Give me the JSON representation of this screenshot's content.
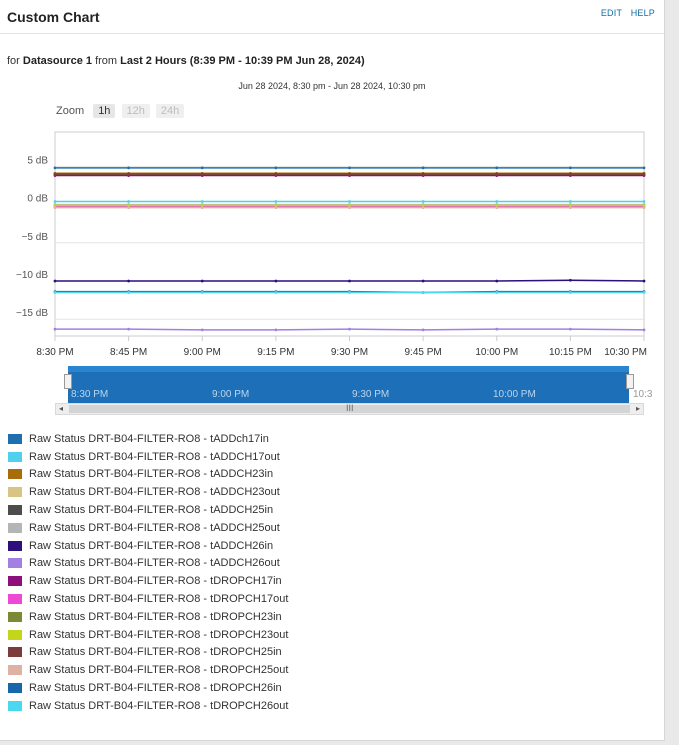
{
  "header": {
    "title": "Custom Chart",
    "edit": "EDIT",
    "help": "HELP"
  },
  "subtitle": {
    "prefix": "for",
    "datasource": "Datasource 1",
    "from_word": "from",
    "period": "Last 2 Hours (8:39 PM - 10:39 PM Jun 28, 2024)"
  },
  "range_label": "Jun 28 2024, 8:30 pm - Jun 28 2024, 10:30 pm",
  "zoom": {
    "label": "Zoom",
    "buttons": [
      "1h",
      "12h",
      "24h"
    ],
    "active": "1h"
  },
  "navigator": {
    "labels": [
      "8:30 PM",
      "9:00 PM",
      "9:30 PM",
      "10:00 PM"
    ],
    "overflow_label": "10:3",
    "scroll_grip": "III"
  },
  "chart_data": {
    "type": "line",
    "x": [
      "8:30 PM",
      "8:45 PM",
      "9:00 PM",
      "9:15 PM",
      "9:30 PM",
      "9:45 PM",
      "10:00 PM",
      "10:15 PM",
      "10:30 PM"
    ],
    "y_ticks": [
      {
        "value": 5,
        "label": "5 dB"
      },
      {
        "value": 0,
        "label": "0 dB"
      },
      {
        "value": -5,
        "label": "−5 dB"
      },
      {
        "value": -10,
        "label": "−10 dB"
      },
      {
        "value": -15,
        "label": "−15 dB"
      }
    ],
    "ylim": [
      -17.2,
      9.5
    ],
    "grid": true,
    "series": [
      {
        "name": "Raw Status DRT-B04-FILTER-RO8 - tADDch17in",
        "color": "#1f6fb0",
        "values": [
          4.8,
          4.8,
          4.8,
          4.8,
          4.8,
          4.8,
          4.8,
          4.8,
          4.8
        ]
      },
      {
        "name": "Raw Status DRT-B04-FILTER-RO8 - tADDCH17out",
        "color": "#4fd0ef",
        "values": [
          0.4,
          0.4,
          0.4,
          0.4,
          0.4,
          0.4,
          0.4,
          0.4,
          0.4
        ]
      },
      {
        "name": "Raw Status DRT-B04-FILTER-RO8 - tADDCH23in",
        "color": "#a86c0b",
        "values": [
          4.1,
          4.1,
          4.1,
          4.1,
          4.1,
          4.1,
          4.1,
          4.1,
          4.1
        ]
      },
      {
        "name": "Raw Status DRT-B04-FILTER-RO8 - tADDCH23out",
        "color": "#d9c484",
        "values": [
          -0.2,
          -0.2,
          -0.2,
          -0.2,
          -0.2,
          -0.2,
          -0.2,
          -0.2,
          -0.2
        ]
      },
      {
        "name": "Raw Status DRT-B04-FILTER-RO8 - tADDCH25in",
        "color": "#4d4d4d",
        "values": [
          3.9,
          3.9,
          3.9,
          3.9,
          3.9,
          3.9,
          3.9,
          3.9,
          3.9
        ]
      },
      {
        "name": "Raw Status DRT-B04-FILTER-RO8 - tADDCH25out",
        "color": "#b5b5b5",
        "values": [
          0.0,
          0.0,
          0.0,
          0.0,
          0.0,
          0.0,
          0.0,
          0.0,
          0.0
        ]
      },
      {
        "name": "Raw Status DRT-B04-FILTER-RO8 - tADDCH26in",
        "color": "#2d0f7d",
        "values": [
          -10.0,
          -10.0,
          -10.0,
          -10.0,
          -10.0,
          -10.0,
          -10.0,
          -9.9,
          -10.0
        ]
      },
      {
        "name": "Raw Status DRT-B04-FILTER-RO8 - tADDCH26out",
        "color": "#a37ee3",
        "values": [
          -16.3,
          -16.3,
          -16.4,
          -16.4,
          -16.3,
          -16.4,
          -16.3,
          -16.3,
          -16.4
        ]
      },
      {
        "name": "Raw Status DRT-B04-FILTER-RO8 - tDROPCH17in",
        "color": "#8c0f7c",
        "values": [
          3.8,
          3.8,
          3.8,
          3.8,
          3.8,
          3.8,
          3.8,
          3.8,
          3.8
        ]
      },
      {
        "name": "Raw Status DRT-B04-FILTER-RO8 - tDROPCH17out",
        "color": "#ee49d6",
        "values": [
          -0.3,
          -0.3,
          -0.3,
          -0.3,
          -0.3,
          -0.3,
          -0.3,
          -0.3,
          -0.3
        ]
      },
      {
        "name": "Raw Status DRT-B04-FILTER-RO8 - tDROPCH23in",
        "color": "#7c8a36",
        "values": [
          4.0,
          4.0,
          4.0,
          4.0,
          4.0,
          4.0,
          4.0,
          4.0,
          4.0
        ]
      },
      {
        "name": "Raw Status DRT-B04-FILTER-RO8 - tDROPCH23out",
        "color": "#c4d61a",
        "values": [
          -0.1,
          -0.1,
          -0.1,
          -0.1,
          -0.1,
          -0.1,
          -0.1,
          -0.1,
          -0.1
        ]
      },
      {
        "name": "Raw Status DRT-B04-FILTER-RO8 - tDROPCH25in",
        "color": "#7e3b3b",
        "values": [
          4.0,
          4.0,
          4.0,
          4.0,
          4.0,
          4.0,
          4.0,
          4.0,
          4.0
        ]
      },
      {
        "name": "Raw Status DRT-B04-FILTER-RO8 - tDROPCH25out",
        "color": "#deb1a3",
        "values": [
          -0.4,
          -0.4,
          -0.4,
          -0.4,
          -0.4,
          -0.4,
          -0.4,
          -0.4,
          -0.4
        ]
      },
      {
        "name": "Raw Status DRT-B04-FILTER-RO8 - tDROPCH26in",
        "color": "#1768aa",
        "values": [
          -11.4,
          -11.4,
          -11.4,
          -11.4,
          -11.4,
          -11.5,
          -11.4,
          -11.4,
          -11.4
        ]
      },
      {
        "name": "Raw Status DRT-B04-FILTER-RO8 - tDROPCH26out",
        "color": "#4ad8f0",
        "values": [
          -11.5,
          -11.5,
          -11.5,
          -11.5,
          -11.5,
          -11.5,
          -11.5,
          -11.5,
          -11.5
        ]
      }
    ]
  }
}
